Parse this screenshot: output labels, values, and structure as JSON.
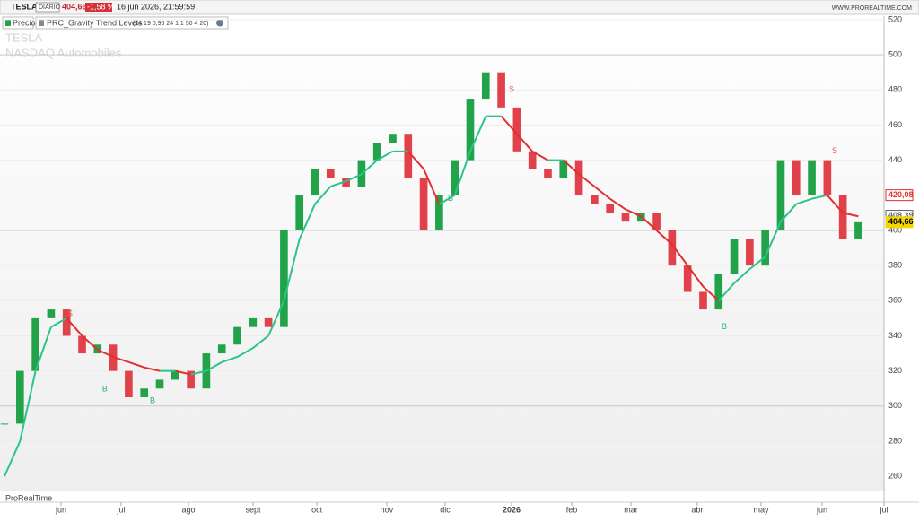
{
  "header": {
    "symbol": "TESLA",
    "period": "DIARIO",
    "price": "404,66",
    "change": "-1,58 %",
    "datetime": "16 jun 2026, 21:59:59",
    "site": "WWW.PROREALTIME.COM"
  },
  "legend": {
    "price": "Precio",
    "indicator": "PRC_Gravity Trend Levels",
    "params": "(14 19 0,96 24 1 1 50 4 20)"
  },
  "watermark": {
    "name": "TESLA",
    "market": "NASDAQ  Automobiles"
  },
  "brand": "ProRealTime",
  "chart_data": {
    "type": "candlestick",
    "x": [
      0,
      1,
      2,
      3,
      4,
      5,
      6,
      7,
      8,
      9,
      10,
      11,
      12,
      13,
      14,
      15,
      16,
      17,
      18,
      19,
      20,
      21,
      22,
      23,
      24,
      25,
      26,
      27,
      28,
      29,
      30,
      31,
      32,
      33,
      34,
      35,
      36,
      37,
      38,
      39,
      40,
      41,
      42,
      43,
      44,
      45,
      46,
      47,
      48,
      49,
      50,
      51,
      52,
      53,
      54,
      55
    ],
    "series": [
      {
        "name": "Precio",
        "color": "#22a34a",
        "down_color": "#e0414a",
        "values": [
          290,
          320,
          350,
          355,
          340,
          330,
          335,
          320,
          305,
          310,
          315,
          320,
          310,
          330,
          335,
          345,
          350,
          345,
          400,
          420,
          435,
          430,
          425,
          440,
          450,
          455,
          430,
          400,
          420,
          440,
          475,
          490,
          470,
          445,
          435,
          430,
          440,
          420,
          415,
          410,
          405,
          410,
          400,
          380,
          365,
          355,
          375,
          395,
          380,
          400,
          440,
          420,
          440,
          420,
          395,
          404.66
        ]
      },
      {
        "name": "PRC_Gravity Trend Levels",
        "color": "#2bc48a",
        "down_color": "#e03030",
        "values": [
          260,
          280,
          320,
          345,
          350,
          340,
          332,
          328,
          325,
          322,
          320,
          320,
          318,
          320,
          325,
          328,
          333,
          340,
          360,
          395,
          415,
          425,
          428,
          432,
          440,
          445,
          445,
          435,
          415,
          420,
          445,
          465,
          465,
          455,
          445,
          440,
          440,
          432,
          425,
          418,
          412,
          408,
          400,
          392,
          380,
          368,
          360,
          370,
          378,
          385,
          405,
          415,
          418,
          420,
          410,
          408
        ]
      }
    ],
    "signals": [
      {
        "label": "S",
        "x": 4.22,
        "value": 352.5,
        "color": "#e05a5a"
      },
      {
        "label": "B",
        "x": 6.47,
        "value": 309.6,
        "color": "#2bb07f"
      },
      {
        "label": "B",
        "x": 9.54,
        "value": 303,
        "color": "#2bb07f"
      },
      {
        "label": "B",
        "x": 28.73,
        "value": 418,
        "color": "#2bb07f"
      },
      {
        "label": "S",
        "x": 32.66,
        "value": 480,
        "color": "#e05a5a"
      },
      {
        "label": "B",
        "x": 46.36,
        "value": 345,
        "color": "#2bb07f"
      },
      {
        "label": "S",
        "x": 53.47,
        "value": 445,
        "color": "#e05a5a"
      }
    ],
    "levels": [
      {
        "value": 420.08,
        "label": "420,08",
        "color": "#e03030"
      },
      {
        "value": 408.39,
        "label": "408,39",
        "color": "#666666"
      },
      {
        "value": 404.66,
        "label": "404,66",
        "color": "#f2d600"
      }
    ],
    "xlim": [
      -0.29,
      56.65
    ],
    "xticks": [
      {
        "value": 3.64,
        "label": "jun"
      },
      {
        "value": 7.51,
        "label": "jul"
      },
      {
        "value": 11.85,
        "label": "ago"
      },
      {
        "value": 16.01,
        "label": "sept"
      },
      {
        "value": 20.12,
        "label": "oct"
      },
      {
        "value": 24.62,
        "label": "nov"
      },
      {
        "value": 28.38,
        "label": "dic"
      },
      {
        "value": 32.66,
        "label": "2026"
      },
      {
        "value": 36.53,
        "label": "feb"
      },
      {
        "value": 40.35,
        "label": "mar"
      },
      {
        "value": 44.62,
        "label": "abr"
      },
      {
        "value": 48.73,
        "label": "may"
      },
      {
        "value": 52.66,
        "label": "jun"
      },
      {
        "value": 56.65,
        "label": "jul"
      }
    ],
    "ylim": [
      251.4,
      522
    ],
    "yticks": [
      260,
      280,
      300,
      320,
      340,
      360,
      380,
      400,
      420,
      440,
      460,
      480,
      500,
      520
    ],
    "grid": true
  }
}
